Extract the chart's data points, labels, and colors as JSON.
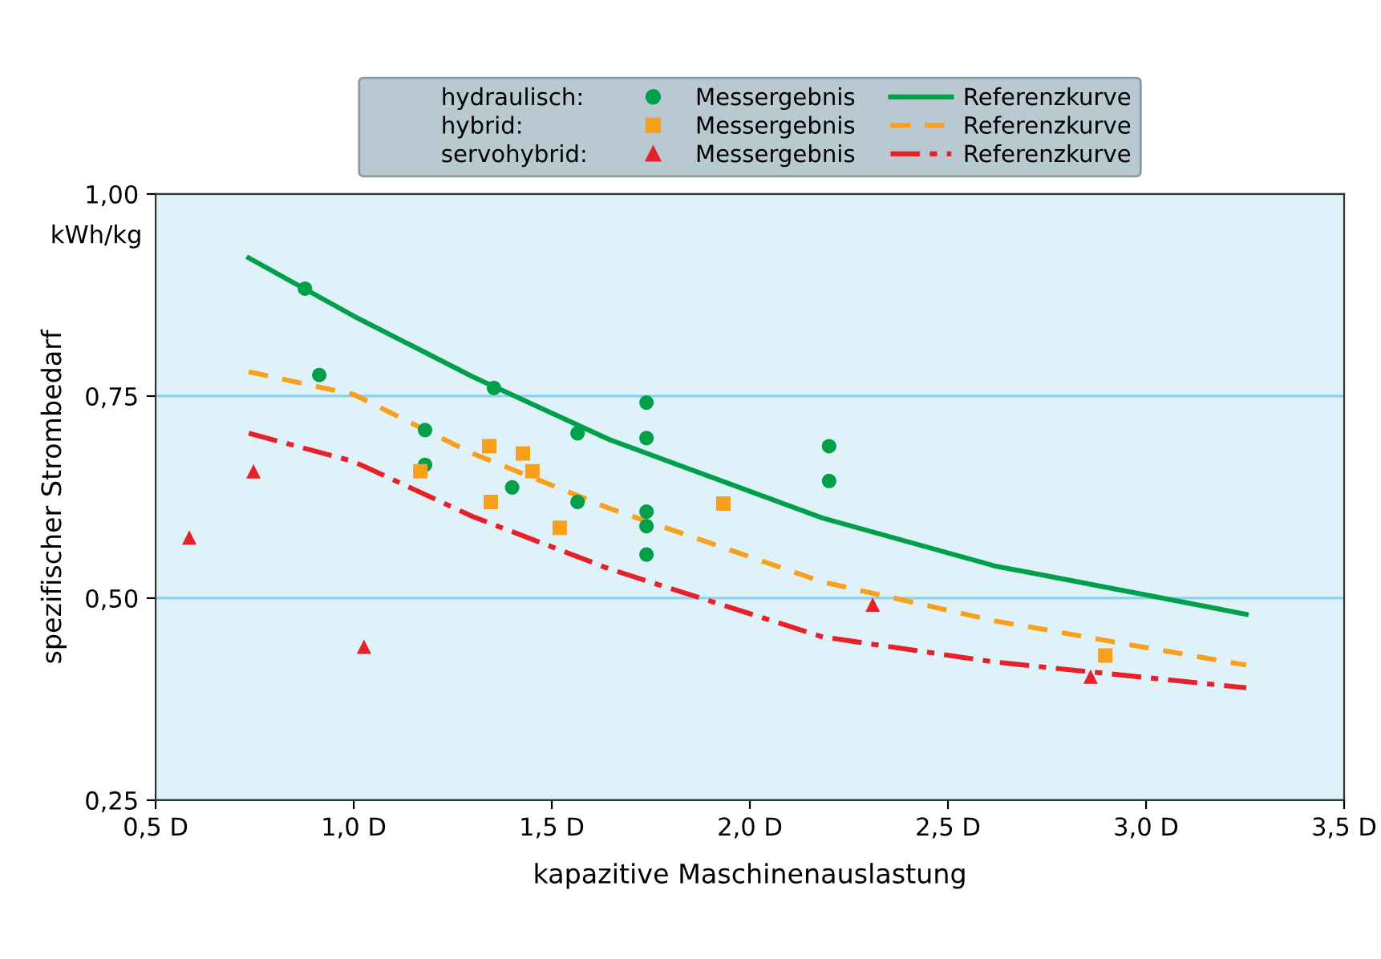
{
  "chart_data": {
    "type": "scatter",
    "xlabel": "kapazitive Maschinenauslastung",
    "ylabel": "spezifischer Strombedarf",
    "annotations": [
      "kWh/kg",
      "hydraulisch:",
      "hybrid:",
      "servohybrid:"
    ],
    "xlim": [
      0.5,
      3.5
    ],
    "xticks": [
      {
        "value": 0.5,
        "label": "0,5 D"
      },
      {
        "value": 1.0,
        "label": "1,0 D"
      },
      {
        "value": 1.5,
        "label": "1,5 D"
      },
      {
        "value": 2.0,
        "label": "2,0 D"
      },
      {
        "value": 2.5,
        "label": "2,5 D"
      },
      {
        "value": 3.0,
        "label": "3,0 D"
      },
      {
        "value": 3.5,
        "label": "3,5 D"
      }
    ],
    "ylim": [
      0.25,
      1.0
    ],
    "yticks": [
      {
        "value": 0.25,
        "label": "0,25"
      },
      {
        "value": 0.5,
        "label": "0,50"
      },
      {
        "value": 0.75,
        "label": "0,75"
      },
      {
        "value": 1.0,
        "label": "1,00"
      }
    ],
    "grid": "y",
    "legend": "top",
    "series": [
      {
        "name": "Messergebnis",
        "marker": "circle",
        "color": "#00a04a",
        "x": [
          0.877,
          0.913,
          1.18,
          1.18,
          1.354,
          1.4,
          1.565,
          1.565,
          1.739,
          1.739,
          1.739,
          1.739,
          1.739,
          2.2,
          2.2
        ],
        "values": [
          0.883,
          0.776,
          0.708,
          0.665,
          0.76,
          0.637,
          0.704,
          0.619,
          0.742,
          0.698,
          0.607,
          0.589,
          0.554,
          0.688,
          0.645
        ]
      },
      {
        "name": "Messergebnis",
        "marker": "square",
        "color": "#f8a01c",
        "x": [
          1.168,
          1.342,
          1.346,
          1.427,
          1.451,
          1.52,
          1.933,
          2.897
        ],
        "values": [
          0.657,
          0.688,
          0.619,
          0.679,
          0.657,
          0.587,
          0.617,
          0.429
        ]
      },
      {
        "name": "Messergebnis",
        "marker": "triangle",
        "color": "#e8202a",
        "x": [
          0.585,
          0.747,
          1.026,
          2.31,
          2.86
        ],
        "values": [
          0.575,
          0.657,
          0.44,
          0.492,
          0.403
        ]
      },
      {
        "name": "Referenzkurve",
        "type": "line",
        "line_style": "solid",
        "color": "#00a04a",
        "x": [
          0.735,
          1.0,
          1.3,
          1.646,
          2.184,
          2.617,
          3.253
        ],
        "values": [
          0.921,
          0.849,
          0.774,
          0.696,
          0.599,
          0.54,
          0.48
        ]
      },
      {
        "name": "Referenzkurve",
        "type": "line",
        "line_style": "dashed",
        "color": "#f8a01c",
        "x": [
          0.735,
          1.0,
          1.3,
          1.646,
          2.184,
          2.617,
          3.253
        ],
        "values": [
          0.78,
          0.752,
          0.679,
          0.611,
          0.52,
          0.472,
          0.417
        ]
      },
      {
        "name": "Referenzkurve",
        "type": "line",
        "line_style": "dashdot",
        "color": "#e8202a",
        "x": [
          0.735,
          1.0,
          1.3,
          1.646,
          2.184,
          2.617,
          3.253
        ],
        "values": [
          0.704,
          0.669,
          0.601,
          0.536,
          0.452,
          0.421,
          0.389
        ]
      }
    ]
  }
}
